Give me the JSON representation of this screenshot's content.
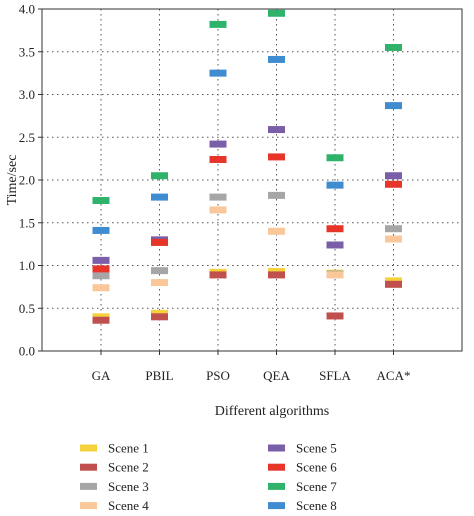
{
  "chart_data": {
    "type": "scatter",
    "marker": "horizontal-bar",
    "categories": [
      "GA",
      "PBIL",
      "PSO",
      "QEA",
      "SFLA",
      "ACA*"
    ],
    "xlabel": "Different algorithms",
    "ylabel": "Time/sec",
    "ylim": [
      0.0,
      4.0
    ],
    "yticks": [
      "0.0",
      "0.5",
      "1.0",
      "1.5",
      "2.0",
      "2.5",
      "3.0",
      "3.5",
      "4.0"
    ],
    "grid": "dotted",
    "legend_position": "bottom",
    "series": [
      {
        "name": "Scene 1",
        "color": "#f5d23c",
        "values": [
          0.4,
          0.44,
          0.92,
          0.93,
          0.91,
          0.82
        ]
      },
      {
        "name": "Scene 2",
        "color": "#c0504d",
        "values": [
          0.36,
          0.4,
          0.89,
          0.89,
          0.41,
          0.78
        ]
      },
      {
        "name": "Scene 3",
        "color": "#a6a6a6",
        "values": [
          0.88,
          0.94,
          1.8,
          1.82,
          0.9,
          1.43
        ]
      },
      {
        "name": "Scene 4",
        "color": "#f9c79a",
        "values": [
          0.74,
          0.8,
          1.65,
          1.4,
          0.89,
          1.31
        ]
      },
      {
        "name": "Scene 5",
        "color": "#7b5ea8",
        "values": [
          1.06,
          1.3,
          2.42,
          2.59,
          1.24,
          2.05
        ]
      },
      {
        "name": "Scene 6",
        "color": "#e8352a",
        "values": [
          0.96,
          1.27,
          2.24,
          2.27,
          1.43,
          1.95
        ]
      },
      {
        "name": "Scene 7",
        "color": "#2fb36a",
        "values": [
          1.76,
          2.05,
          3.82,
          3.95,
          2.26,
          3.55
        ]
      },
      {
        "name": "Scene 8",
        "color": "#3f8dd0",
        "values": [
          1.41,
          1.8,
          3.25,
          3.41,
          1.94,
          2.87
        ]
      }
    ]
  }
}
